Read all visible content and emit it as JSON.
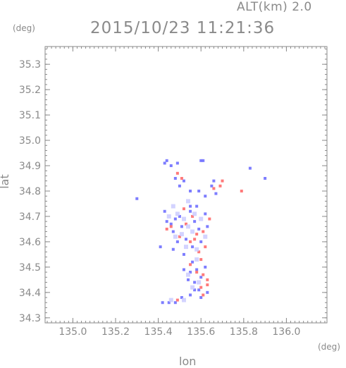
{
  "header": {
    "alt_label": "ALT(km) 2.0",
    "timestamp": "2015/10/23 11:21:36"
  },
  "axes": {
    "y_unit": "(deg)",
    "x_unit": "(deg)",
    "xlabel": "lon",
    "ylabel": "lat"
  },
  "colors": {
    "axis": "#8a8a8a",
    "positive": "#ff6b6b",
    "negative": "#6f6fff"
  },
  "chart_data": {
    "type": "scatter",
    "title": "2015/10/23 11:21:36",
    "subtitle": "ALT(km) 2.0",
    "xlabel": "lon",
    "ylabel": "lat",
    "xunit": "(deg)",
    "yunit": "(deg)",
    "xlim": [
      134.87,
      136.19
    ],
    "ylim": [
      34.28,
      35.37
    ],
    "xticks": [
      135.0,
      135.2,
      135.4,
      135.6,
      135.8,
      136.0
    ],
    "xtick_labels": [
      "135.0",
      "135.2",
      "135.4",
      "135.6",
      "135.8",
      "136.0"
    ],
    "yticks": [
      34.3,
      34.4,
      34.5,
      34.6,
      34.7,
      34.8,
      34.9,
      35.0,
      35.1,
      35.2,
      35.3
    ],
    "ytick_labels": [
      "34.3",
      "34.4",
      "34.5",
      "34.6",
      "34.7",
      "34.8",
      "34.9",
      "35.0",
      "35.1",
      "35.2",
      "35.3"
    ],
    "grid": false,
    "series": [
      {
        "color": "#6f6fff",
        "points": [
          [
            135.43,
            34.91
          ],
          [
            135.44,
            34.92
          ],
          [
            135.46,
            34.9
          ],
          [
            135.49,
            34.91
          ],
          [
            135.61,
            34.92
          ],
          [
            135.6,
            34.92
          ],
          [
            135.83,
            34.89
          ],
          [
            135.48,
            34.85
          ],
          [
            135.52,
            34.84
          ],
          [
            135.5,
            34.82
          ],
          [
            135.55,
            34.8
          ],
          [
            135.59,
            34.8
          ],
          [
            135.66,
            34.84
          ],
          [
            135.67,
            34.79
          ],
          [
            135.65,
            34.82
          ],
          [
            135.62,
            34.78
          ],
          [
            135.9,
            34.85
          ],
          [
            135.3,
            34.77
          ],
          [
            135.43,
            34.72
          ],
          [
            135.44,
            34.68
          ],
          [
            135.46,
            34.67
          ],
          [
            135.48,
            34.69
          ],
          [
            135.5,
            34.7
          ],
          [
            135.47,
            34.64
          ],
          [
            135.51,
            34.66
          ],
          [
            135.55,
            34.72
          ],
          [
            135.57,
            34.68
          ],
          [
            135.59,
            34.65
          ],
          [
            135.53,
            34.61
          ],
          [
            135.49,
            34.6
          ],
          [
            135.47,
            34.57
          ],
          [
            135.52,
            34.55
          ],
          [
            135.56,
            34.58
          ],
          [
            135.6,
            34.6
          ],
          [
            135.63,
            34.66
          ],
          [
            135.62,
            34.71
          ],
          [
            135.58,
            34.74
          ],
          [
            135.55,
            34.74
          ],
          [
            135.41,
            34.58
          ],
          [
            135.56,
            34.52
          ],
          [
            135.58,
            34.49
          ],
          [
            135.55,
            34.48
          ],
          [
            135.52,
            34.49
          ],
          [
            135.6,
            34.46
          ],
          [
            135.57,
            34.44
          ],
          [
            135.62,
            34.5
          ],
          [
            135.59,
            34.41
          ],
          [
            135.63,
            34.4
          ],
          [
            135.6,
            34.38
          ],
          [
            135.55,
            34.39
          ],
          [
            135.48,
            34.36
          ],
          [
            135.45,
            34.36
          ],
          [
            135.42,
            34.36
          ],
          [
            135.51,
            34.38
          ],
          [
            135.54,
            34.45
          ],
          [
            135.57,
            34.41
          ]
        ]
      },
      {
        "color": "#ff6b6b",
        "points": [
          [
            135.49,
            34.87
          ],
          [
            135.51,
            34.85
          ],
          [
            135.69,
            34.82
          ],
          [
            135.66,
            34.81
          ],
          [
            135.7,
            34.84
          ],
          [
            135.79,
            34.8
          ],
          [
            135.52,
            34.73
          ],
          [
            135.56,
            34.7
          ],
          [
            135.53,
            34.67
          ],
          [
            135.5,
            34.62
          ],
          [
            135.58,
            34.63
          ],
          [
            135.61,
            34.64
          ],
          [
            135.55,
            34.6
          ],
          [
            135.57,
            34.61
          ],
          [
            135.62,
            34.58
          ],
          [
            135.46,
            34.66
          ],
          [
            135.44,
            34.65
          ],
          [
            135.59,
            34.56
          ],
          [
            135.58,
            34.48
          ],
          [
            135.61,
            34.47
          ],
          [
            135.63,
            34.43
          ],
          [
            135.6,
            34.42
          ],
          [
            135.61,
            34.39
          ],
          [
            135.49,
            34.37
          ],
          [
            135.63,
            34.45
          ],
          [
            135.6,
            34.53
          ],
          [
            135.64,
            34.69
          ],
          [
            135.55,
            34.51
          ]
        ]
      },
      {
        "color": "#c8c8ff",
        "points": [
          [
            135.47,
            34.74
          ],
          [
            135.49,
            34.71
          ],
          [
            135.52,
            34.69
          ],
          [
            135.54,
            34.66
          ],
          [
            135.56,
            34.64
          ],
          [
            135.51,
            34.63
          ],
          [
            135.48,
            34.62
          ],
          [
            135.53,
            34.58
          ],
          [
            135.58,
            34.57
          ],
          [
            135.6,
            34.69
          ],
          [
            135.57,
            34.71
          ],
          [
            135.54,
            34.76
          ],
          [
            135.58,
            34.53
          ],
          [
            135.54,
            34.47
          ],
          [
            135.59,
            34.44
          ],
          [
            135.56,
            34.42
          ],
          [
            135.52,
            34.37
          ],
          [
            135.46,
            34.37
          ],
          [
            135.62,
            34.62
          ],
          [
            135.45,
            34.7
          ]
        ]
      }
    ]
  }
}
